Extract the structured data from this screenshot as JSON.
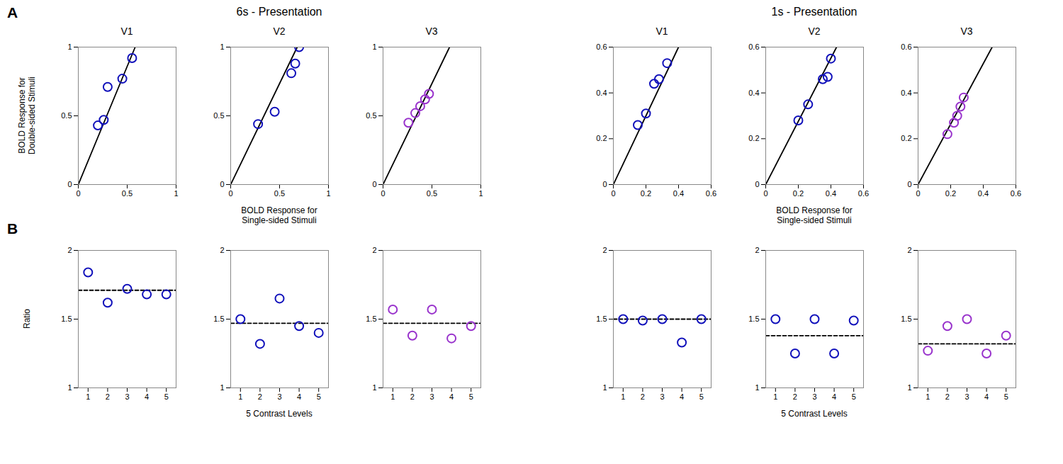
{
  "chart_data": [
    {
      "type": "scatter",
      "title": "V1",
      "ylabel": "BOLD Response for\nDouble-sided Stimuli",
      "xlim": [
        0,
        1
      ],
      "ylim": [
        0,
        1
      ],
      "xticks": [
        0,
        0.5,
        1
      ],
      "yticks": [
        0,
        0.5,
        1
      ],
      "grid": false,
      "annotations": [
        "A"
      ],
      "series": [
        {
          "type": "line",
          "color": "#000000",
          "line_style": "solid",
          "x": [
            0,
            0.5813953488372093
          ],
          "values": [
            0,
            1
          ]
        },
        {
          "type": "scatter",
          "color": "#1111BB",
          "marker": "circle",
          "x": [
            0.2,
            0.26,
            0.3,
            0.45,
            0.55
          ],
          "values": [
            0.43,
            0.47,
            0.71,
            0.77,
            0.92
          ]
        }
      ]
    },
    {
      "type": "scatter",
      "title": "V2",
      "xlabel": "BOLD Response for\nSingle-sided Stimuli",
      "xlim": [
        0,
        1
      ],
      "ylim": [
        0,
        1
      ],
      "xticks": [
        0,
        0.5,
        1
      ],
      "yticks": [
        0,
        0.5,
        1
      ],
      "grid": false,
      "annotations": [
        "6s - Presentation"
      ],
      "series": [
        {
          "type": "line",
          "color": "#000000",
          "line_style": "solid",
          "x": [
            0,
            0.6802721088435374
          ],
          "values": [
            0,
            1
          ]
        },
        {
          "type": "scatter",
          "color": "#1111BB",
          "marker": "circle",
          "x": [
            0.28,
            0.45,
            0.62,
            0.66,
            0.7
          ],
          "values": [
            0.44,
            0.53,
            0.81,
            0.88,
            1.0
          ]
        }
      ]
    },
    {
      "type": "scatter",
      "title": "V3",
      "xlim": [
        0,
        1
      ],
      "ylim": [
        0,
        1
      ],
      "xticks": [
        0,
        0.5,
        1
      ],
      "yticks": [
        0,
        0.5,
        1
      ],
      "grid": false,
      "series": [
        {
          "type": "line",
          "color": "#000000",
          "line_style": "solid",
          "x": [
            0,
            0.6802721088435374
          ],
          "values": [
            0,
            1
          ]
        },
        {
          "type": "scatter",
          "color": "#9933CC",
          "marker": "circle",
          "x": [
            0.26,
            0.33,
            0.38,
            0.43,
            0.47
          ],
          "values": [
            0.45,
            0.52,
            0.57,
            0.62,
            0.66
          ]
        }
      ]
    },
    {
      "type": "scatter",
      "title": "V1",
      "xlim": [
        0,
        0.6
      ],
      "ylim": [
        0,
        0.6
      ],
      "xticks": [
        0,
        0.2,
        0.4,
        0.6
      ],
      "yticks": [
        0,
        0.2,
        0.4,
        0.6
      ],
      "grid": false,
      "series": [
        {
          "type": "line",
          "color": "#000000",
          "line_style": "solid",
          "x": [
            0,
            0.4
          ],
          "values": [
            0,
            0.6
          ]
        },
        {
          "type": "scatter",
          "color": "#1111BB",
          "marker": "circle",
          "x": [
            0.15,
            0.2,
            0.25,
            0.28,
            0.33
          ],
          "values": [
            0.26,
            0.31,
            0.44,
            0.46,
            0.53
          ]
        }
      ]
    },
    {
      "type": "scatter",
      "title": "V2",
      "xlabel": "BOLD Response for\nSingle-sided Stimuli",
      "xlim": [
        0,
        0.6
      ],
      "ylim": [
        0,
        0.6
      ],
      "xticks": [
        0,
        0.2,
        0.4,
        0.6
      ],
      "yticks": [
        0,
        0.2,
        0.4,
        0.6
      ],
      "grid": false,
      "annotations": [
        "1s - Presentation"
      ],
      "series": [
        {
          "type": "line",
          "color": "#000000",
          "line_style": "solid",
          "x": [
            0,
            0.43478260869565216
          ],
          "values": [
            0,
            0.6
          ]
        },
        {
          "type": "scatter",
          "color": "#1111BB",
          "marker": "circle",
          "x": [
            0.2,
            0.26,
            0.35,
            0.38,
            0.4
          ],
          "values": [
            0.28,
            0.35,
            0.46,
            0.47,
            0.55
          ]
        }
      ]
    },
    {
      "type": "scatter",
      "title": "V3",
      "xlim": [
        0,
        0.6
      ],
      "ylim": [
        0,
        0.6
      ],
      "xticks": [
        0,
        0.2,
        0.4,
        0.6
      ],
      "yticks": [
        0,
        0.2,
        0.4,
        0.6
      ],
      "grid": false,
      "series": [
        {
          "type": "line",
          "color": "#000000",
          "line_style": "solid",
          "x": [
            0,
            0.4545454545454545
          ],
          "values": [
            0,
            0.6
          ]
        },
        {
          "type": "scatter",
          "color": "#9933CC",
          "marker": "circle",
          "x": [
            0.18,
            0.22,
            0.24,
            0.26,
            0.28
          ],
          "values": [
            0.22,
            0.27,
            0.3,
            0.34,
            0.38
          ]
        }
      ]
    },
    {
      "type": "scatter",
      "ylabel": "Ratio",
      "xlim": [
        0.5,
        5.5
      ],
      "ylim": [
        1,
        2
      ],
      "xticks": [
        1,
        2,
        3,
        4,
        5
      ],
      "yticks": [
        1,
        1.5,
        2
      ],
      "grid": false,
      "annotations": [
        "B"
      ],
      "series": [
        {
          "type": "line",
          "color": "#000000",
          "line_style": "dashed",
          "x": [
            0.5,
            5.5
          ],
          "values": [
            1.71,
            1.71
          ]
        },
        {
          "type": "scatter",
          "color": "#1111BB",
          "marker": "circle",
          "x": [
            1,
            2,
            3,
            4,
            5
          ],
          "values": [
            1.84,
            1.62,
            1.72,
            1.68,
            1.68
          ]
        }
      ]
    },
    {
      "type": "scatter",
      "xlabel": "5 Contrast Levels",
      "xlim": [
        0.5,
        5.5
      ],
      "ylim": [
        1,
        2
      ],
      "xticks": [
        1,
        2,
        3,
        4,
        5
      ],
      "yticks": [
        1,
        1.5,
        2
      ],
      "grid": false,
      "series": [
        {
          "type": "line",
          "color": "#000000",
          "line_style": "dashed",
          "x": [
            0.5,
            5.5
          ],
          "values": [
            1.47,
            1.47
          ]
        },
        {
          "type": "scatter",
          "color": "#1111BB",
          "marker": "circle",
          "x": [
            1,
            2,
            3,
            4,
            5
          ],
          "values": [
            1.5,
            1.32,
            1.65,
            1.45,
            1.4
          ]
        }
      ]
    },
    {
      "type": "scatter",
      "xlim": [
        0.5,
        5.5
      ],
      "ylim": [
        1,
        2
      ],
      "xticks": [
        1,
        2,
        3,
        4,
        5
      ],
      "yticks": [
        1,
        1.5,
        2
      ],
      "grid": false,
      "series": [
        {
          "type": "line",
          "color": "#000000",
          "line_style": "dashed",
          "x": [
            0.5,
            5.5
          ],
          "values": [
            1.47,
            1.47
          ]
        },
        {
          "type": "scatter",
          "color": "#9933CC",
          "marker": "circle",
          "x": [
            1,
            2,
            3,
            4,
            5
          ],
          "values": [
            1.57,
            1.38,
            1.57,
            1.36,
            1.45
          ]
        }
      ]
    },
    {
      "type": "scatter",
      "xlim": [
        0.5,
        5.5
      ],
      "ylim": [
        1,
        2
      ],
      "xticks": [
        1,
        2,
        3,
        4,
        5
      ],
      "yticks": [
        1,
        1.5,
        2
      ],
      "grid": false,
      "series": [
        {
          "type": "line",
          "color": "#000000",
          "line_style": "dashed",
          "x": [
            0.5,
            5.5
          ],
          "values": [
            1.5,
            1.5
          ]
        },
        {
          "type": "scatter",
          "color": "#1111BB",
          "marker": "circle",
          "x": [
            1,
            2,
            3,
            4,
            5
          ],
          "values": [
            1.5,
            1.49,
            1.5,
            1.33,
            1.5
          ]
        }
      ]
    },
    {
      "type": "scatter",
      "xlabel": "5 Contrast Levels",
      "xlim": [
        0.5,
        5.5
      ],
      "ylim": [
        1,
        2
      ],
      "xticks": [
        1,
        2,
        3,
        4,
        5
      ],
      "yticks": [
        1,
        1.5,
        2
      ],
      "grid": false,
      "series": [
        {
          "type": "line",
          "color": "#000000",
          "line_style": "dashed",
          "x": [
            0.5,
            5.5
          ],
          "values": [
            1.38,
            1.38
          ]
        },
        {
          "type": "scatter",
          "color": "#1111BB",
          "marker": "circle",
          "x": [
            1,
            2,
            3,
            4,
            5
          ],
          "values": [
            1.5,
            1.25,
            1.5,
            1.25,
            1.49
          ]
        }
      ]
    },
    {
      "type": "scatter",
      "xlim": [
        0.5,
        5.5
      ],
      "ylim": [
        1,
        2
      ],
      "xticks": [
        1,
        2,
        3,
        4,
        5
      ],
      "yticks": [
        1,
        1.5,
        2
      ],
      "grid": false,
      "series": [
        {
          "type": "line",
          "color": "#000000",
          "line_style": "dashed",
          "x": [
            0.5,
            5.5
          ],
          "values": [
            1.32,
            1.32
          ]
        },
        {
          "type": "scatter",
          "color": "#9933CC",
          "marker": "circle",
          "x": [
            1,
            2,
            3,
            4,
            5
          ],
          "values": [
            1.27,
            1.45,
            1.5,
            1.25,
            1.38
          ]
        }
      ]
    }
  ]
}
